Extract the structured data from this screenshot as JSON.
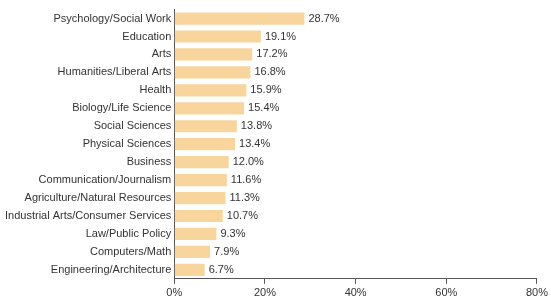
{
  "chart_data": {
    "type": "bar",
    "orientation": "horizontal",
    "categories": [
      "Psychology/Social Work",
      "Education",
      "Arts",
      "Humanities/Liberal Arts",
      "Health",
      "Biology/Life Science",
      "Social Sciences",
      "Physical Sciences",
      "Business",
      "Communication/Journalism",
      "Agriculture/Natural Resources",
      "Industrial Arts/Consumer Services",
      "Law/Public Policy",
      "Computers/Math",
      "Engineering/Architecture"
    ],
    "values": [
      28.7,
      19.1,
      17.2,
      16.8,
      15.9,
      15.4,
      13.8,
      13.4,
      12.0,
      11.6,
      11.3,
      10.7,
      9.3,
      7.9,
      6.7
    ],
    "value_labels": [
      "28.7%",
      "19.1%",
      "17.2%",
      "16.8%",
      "15.9%",
      "15.4%",
      "13.8%",
      "13.4%",
      "12.0%",
      "11.6%",
      "11.3%",
      "10.7%",
      "9.3%",
      "7.9%",
      "6.7%"
    ],
    "data_labels": true,
    "color": "#f8d59c",
    "xlim": [
      0,
      80
    ],
    "xticks": [
      {
        "value": 0,
        "label": "0%"
      },
      {
        "value": 20,
        "label": "20%"
      },
      {
        "value": 40,
        "label": "40%"
      },
      {
        "value": 60,
        "label": "60%"
      },
      {
        "value": 80,
        "label": "80%"
      }
    ],
    "grid": false
  }
}
